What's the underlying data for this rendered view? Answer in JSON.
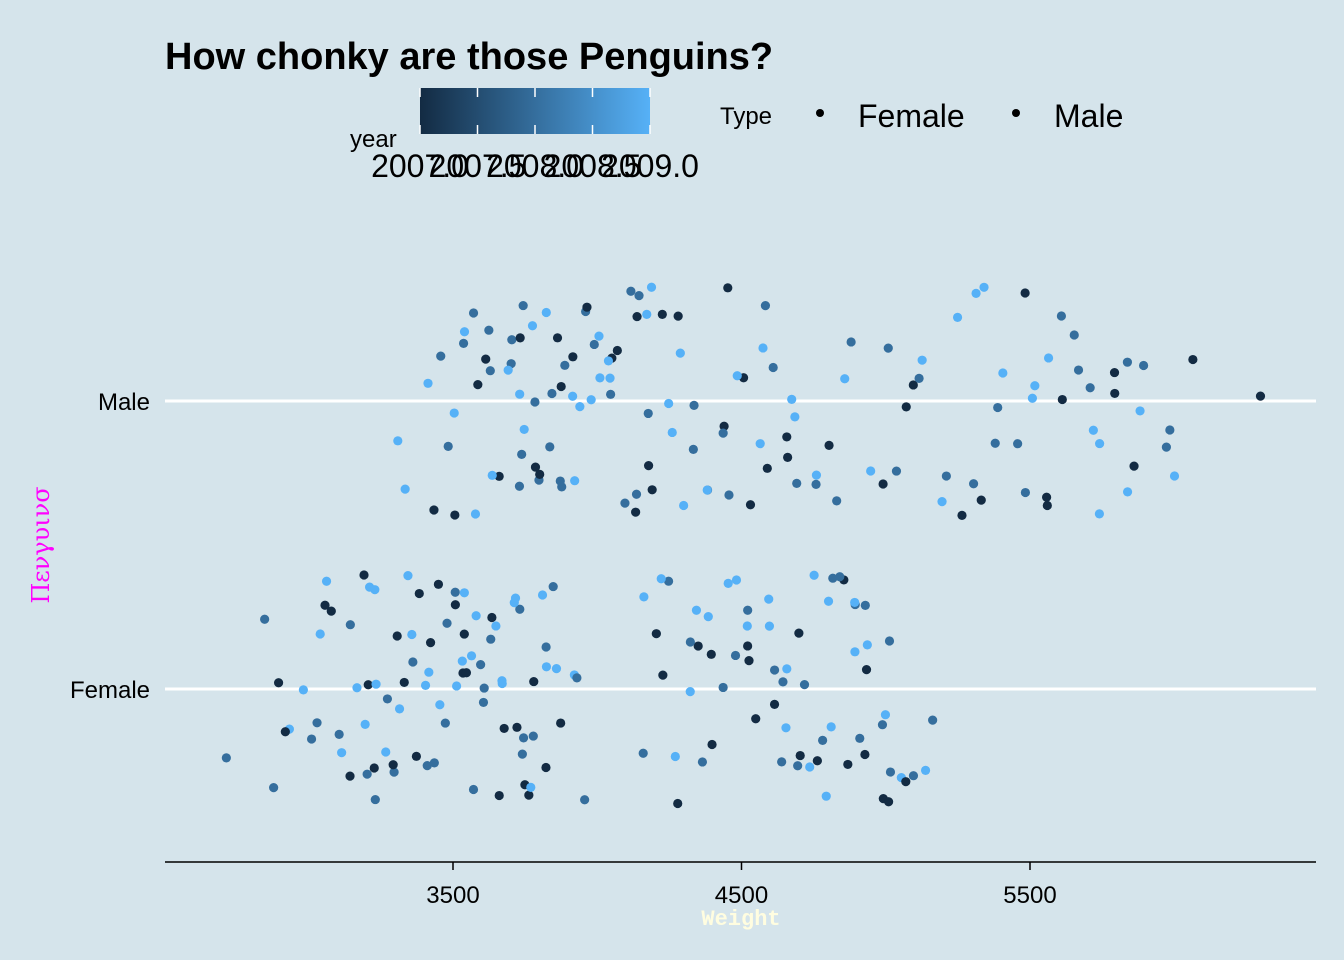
{
  "chart_data": {
    "type": "scatter",
    "title": "How chonky are those Penguins?",
    "xlabel": "Weight",
    "ylabel": "Πενγυινσ",
    "xlim": [
      2500,
      6500
    ],
    "x_ticks": [
      3500,
      4500,
      5500
    ],
    "x_tick_labels": [
      "3500",
      "4500",
      "5500"
    ],
    "categories": [
      "Female",
      "Male"
    ],
    "grid": "horizontal major lines only",
    "colors": {
      "background": "#d5e4eb",
      "title": "#000000",
      "xlabel": "#fffde0",
      "ylabel": "#ff00ff",
      "gridline": "#ffffff",
      "gradient_low": "#132b43",
      "gradient_high": "#56b1f7"
    },
    "legend": {
      "placement": "top",
      "color_legend": {
        "title": "year",
        "range": [
          2007,
          2009
        ],
        "tick_labels": [
          "2007.0",
          "2007.5",
          "2008.0",
          "2008.5",
          "2009.0"
        ]
      },
      "shape_legend": {
        "title": "Type",
        "entries": [
          "Female",
          "Male"
        ]
      }
    },
    "series": [
      {
        "name": "Male",
        "points": [
          [
            3450,
            2008
          ],
          [
            3500,
            2007
          ],
          [
            3300,
            2009
          ],
          [
            3350,
            2009
          ],
          [
            3650,
            2007
          ],
          [
            3690,
            2008
          ],
          [
            3610,
            2008
          ],
          [
            3700,
            2008
          ],
          [
            3800,
            2007
          ],
          [
            3780,
            2008
          ],
          [
            3750,
            2009
          ],
          [
            3680,
            2009
          ],
          [
            3640,
            2008
          ],
          [
            3710,
            2008
          ],
          [
            3590,
            2007
          ],
          [
            3760,
            2009
          ],
          [
            3630,
            2007
          ],
          [
            3790,
            2008
          ],
          [
            3820,
            2008
          ],
          [
            3850,
            2007
          ],
          [
            3880,
            2008
          ],
          [
            3900,
            2007
          ],
          [
            3920,
            2009
          ],
          [
            3950,
            2008
          ],
          [
            3960,
            2007
          ],
          [
            4000,
            2009
          ],
          [
            3980,
            2008
          ],
          [
            4050,
            2009
          ],
          [
            4100,
            2008
          ],
          [
            4120,
            2008
          ],
          [
            4150,
            2007
          ],
          [
            4180,
            2009
          ],
          [
            4080,
            2007
          ],
          [
            4010,
            2009
          ],
          [
            3900,
            2009
          ],
          [
            3870,
            2008
          ],
          [
            3830,
            2008
          ],
          [
            4200,
            2008
          ],
          [
            4250,
            2009
          ],
          [
            4280,
            2009
          ],
          [
            4300,
            2009
          ],
          [
            4350,
            2008
          ],
          [
            4420,
            2007
          ],
          [
            4460,
            2008
          ],
          [
            4500,
            2007
          ],
          [
            4550,
            2009
          ],
          [
            4600,
            2007
          ],
          [
            4650,
            2009
          ],
          [
            4700,
            2009
          ],
          [
            4750,
            2008
          ],
          [
            4800,
            2007
          ],
          [
            4850,
            2008
          ],
          [
            4900,
            2008
          ],
          [
            4950,
            2009
          ],
          [
            5000,
            2007
          ],
          [
            5050,
            2008
          ],
          [
            5100,
            2007
          ],
          [
            5150,
            2009
          ],
          [
            5200,
            2008
          ],
          [
            5250,
            2007
          ],
          [
            5300,
            2008
          ],
          [
            5350,
            2009
          ],
          [
            5400,
            2008
          ],
          [
            5450,
            2008
          ],
          [
            5500,
            2009
          ],
          [
            5550,
            2007
          ],
          [
            5600,
            2008
          ],
          [
            5650,
            2008
          ],
          [
            5700,
            2008
          ],
          [
            5750,
            2009
          ],
          [
            5800,
            2007
          ],
          [
            5850,
            2008
          ],
          [
            5900,
            2009
          ],
          [
            5950,
            2008
          ],
          [
            6000,
            2009
          ],
          [
            6050,
            2007
          ],
          [
            6300,
            2007
          ],
          [
            4400,
            2008
          ],
          [
            4460,
            2007
          ],
          [
            4480,
            2009
          ],
          [
            4300,
            2007
          ],
          [
            4190,
            2009
          ],
          [
            4320,
            2008
          ],
          [
            4600,
            2008
          ],
          [
            4060,
            2008
          ],
          [
            4030,
            2007
          ],
          [
            4210,
            2007
          ],
          [
            4140,
            2007
          ],
          [
            3550,
            2008
          ],
          [
            3430,
            2007
          ],
          [
            3750,
            2008
          ],
          [
            3810,
            2007
          ],
          [
            3950,
            2009
          ],
          [
            5060,
            2007
          ],
          [
            5370,
            2008
          ],
          [
            5260,
            2009
          ],
          [
            5470,
            2007
          ],
          [
            5630,
            2007
          ],
          [
            5670,
            2008
          ],
          [
            5710,
            2009
          ],
          [
            5890,
            2008
          ],
          [
            5520,
            2009
          ],
          [
            5560,
            2009
          ],
          [
            5310,
            2007
          ],
          [
            5110,
            2008
          ],
          [
            4990,
            2008
          ],
          [
            4880,
            2009
          ],
          [
            5200,
            2009
          ],
          [
            5290,
            2009
          ],
          [
            5410,
            2009
          ],
          [
            5500,
            2008
          ],
          [
            5570,
            2007
          ],
          [
            5730,
            2009
          ],
          [
            5780,
            2007
          ],
          [
            5830,
            2009
          ],
          [
            5870,
            2007
          ],
          [
            5980,
            2008
          ],
          [
            4580,
            2008
          ],
          [
            4640,
            2007
          ],
          [
            4680,
            2007
          ],
          [
            4770,
            2009
          ],
          [
            4520,
            2007
          ],
          [
            4380,
            2009
          ],
          [
            4240,
            2007
          ],
          [
            4470,
            2008
          ],
          [
            4560,
            2009
          ],
          [
            4700,
            2008
          ],
          [
            3470,
            2008
          ],
          [
            3530,
            2009
          ],
          [
            3620,
            2009
          ],
          [
            3720,
            2007
          ],
          [
            3760,
            2008
          ],
          [
            3900,
            2008
          ],
          [
            3980,
            2009
          ],
          [
            4060,
            2009
          ],
          [
            4130,
            2008
          ],
          [
            4160,
            2008
          ],
          [
            4190,
            2007
          ],
          [
            4260,
            2009
          ],
          [
            3820,
            2009
          ],
          [
            3860,
            2007
          ],
          [
            3740,
            2009
          ],
          [
            3580,
            2008
          ],
          [
            3500,
            2009
          ],
          [
            3400,
            2009
          ],
          [
            3600,
            2009
          ]
        ]
      },
      {
        "name": "Female",
        "points": [
          [
            2700,
            2008
          ],
          [
            2860,
            2008
          ],
          [
            2870,
            2008
          ],
          [
            2900,
            2007
          ],
          [
            2910,
            2009
          ],
          [
            2920,
            2007
          ],
          [
            2980,
            2009
          ],
          [
            3000,
            2008
          ],
          [
            3050,
            2009
          ],
          [
            3100,
            2007
          ],
          [
            3150,
            2009
          ],
          [
            3200,
            2007
          ],
          [
            3250,
            2008
          ],
          [
            3300,
            2009
          ],
          [
            3350,
            2007
          ],
          [
            3400,
            2008
          ],
          [
            3450,
            2008
          ],
          [
            3500,
            2007
          ],
          [
            3550,
            2009
          ],
          [
            3600,
            2008
          ],
          [
            3650,
            2009
          ],
          [
            3700,
            2007
          ],
          [
            3750,
            2008
          ],
          [
            3800,
            2009
          ],
          [
            3850,
            2008
          ],
          [
            3900,
            2009
          ],
          [
            3950,
            2008
          ],
          [
            3100,
            2009
          ],
          [
            3150,
            2008
          ],
          [
            3200,
            2009
          ],
          [
            3250,
            2007
          ],
          [
            3300,
            2008
          ],
          [
            3350,
            2009
          ],
          [
            3400,
            2007
          ],
          [
            3450,
            2009
          ],
          [
            3500,
            2008
          ],
          [
            3550,
            2007
          ],
          [
            3600,
            2009
          ],
          [
            3650,
            2008
          ],
          [
            3700,
            2009
          ],
          [
            3750,
            2007
          ],
          [
            3800,
            2008
          ],
          [
            3850,
            2009
          ],
          [
            3080,
            2007
          ],
          [
            3120,
            2008
          ],
          [
            3180,
            2009
          ],
          [
            3220,
            2007
          ],
          [
            3280,
            2009
          ],
          [
            3330,
            2007
          ],
          [
            3370,
            2008
          ],
          [
            3420,
            2009
          ],
          [
            3470,
            2007
          ],
          [
            3520,
            2009
          ],
          [
            3570,
            2008
          ],
          [
            3620,
            2007
          ],
          [
            3670,
            2009
          ],
          [
            3720,
            2008
          ],
          [
            3770,
            2007
          ],
          [
            3820,
            2009
          ],
          [
            3880,
            2007
          ],
          [
            3930,
            2008
          ],
          [
            3030,
            2008
          ],
          [
            3060,
            2009
          ],
          [
            3140,
            2007
          ],
          [
            3190,
            2008
          ],
          [
            3240,
            2009
          ],
          [
            3290,
            2008
          ],
          [
            3340,
            2007
          ],
          [
            3390,
            2009
          ],
          [
            3440,
            2008
          ],
          [
            3490,
            2009
          ],
          [
            3540,
            2007
          ],
          [
            3590,
            2008
          ],
          [
            3640,
            2007
          ],
          [
            3690,
            2009
          ],
          [
            3740,
            2008
          ],
          [
            3790,
            2007
          ],
          [
            3840,
            2007
          ],
          [
            3240,
            2009
          ],
          [
            3310,
            2007
          ],
          [
            3360,
            2009
          ],
          [
            3410,
            2007
          ],
          [
            3460,
            2008
          ],
          [
            3510,
            2009
          ],
          [
            3560,
            2007
          ],
          [
            3610,
            2008
          ],
          [
            3660,
            2009
          ],
          [
            3710,
            2007
          ],
          [
            3760,
            2009
          ],
          [
            3810,
            2008
          ],
          [
            4150,
            2009
          ],
          [
            4200,
            2007
          ],
          [
            4250,
            2008
          ],
          [
            4300,
            2009
          ],
          [
            4350,
            2008
          ],
          [
            4400,
            2007
          ],
          [
            4450,
            2009
          ],
          [
            4500,
            2008
          ],
          [
            4550,
            2007
          ],
          [
            4600,
            2009
          ],
          [
            4650,
            2008
          ],
          [
            4700,
            2007
          ],
          [
            4750,
            2009
          ],
          [
            4800,
            2008
          ],
          [
            4850,
            2007
          ],
          [
            4900,
            2009
          ],
          [
            4950,
            2008
          ],
          [
            5000,
            2007
          ],
          [
            5050,
            2009
          ],
          [
            5100,
            2008
          ],
          [
            4180,
            2008
          ],
          [
            4230,
            2007
          ],
          [
            4280,
            2009
          ],
          [
            4330,
            2007
          ],
          [
            4380,
            2009
          ],
          [
            4430,
            2008
          ],
          [
            4480,
            2009
          ],
          [
            4530,
            2007
          ],
          [
            4580,
            2009
          ],
          [
            4630,
            2007
          ],
          [
            4680,
            2008
          ],
          [
            4730,
            2009
          ],
          [
            4780,
            2007
          ],
          [
            4830,
            2009
          ],
          [
            4880,
            2008
          ],
          [
            4930,
            2007
          ],
          [
            4980,
            2009
          ],
          [
            5030,
            2008
          ],
          [
            5080,
            2007
          ],
          [
            5130,
            2009
          ],
          [
            4210,
            2009
          ],
          [
            4260,
            2007
          ],
          [
            4310,
            2008
          ],
          [
            4360,
            2009
          ],
          [
            4410,
            2007
          ],
          [
            4460,
            2008
          ],
          [
            4510,
            2009
          ],
          [
            4560,
            2007
          ],
          [
            4610,
            2008
          ],
          [
            4660,
            2009
          ],
          [
            4710,
            2007
          ],
          [
            4760,
            2008
          ],
          [
            4810,
            2009
          ],
          [
            4860,
            2007
          ],
          [
            4910,
            2008
          ],
          [
            4960,
            2009
          ],
          [
            5010,
            2007
          ],
          [
            4620,
            2008
          ],
          [
            4670,
            2009
          ],
          [
            4720,
            2008
          ],
          [
            4770,
            2009
          ],
          [
            4820,
            2008
          ],
          [
            4870,
            2009
          ],
          [
            4920,
            2007
          ],
          [
            4970,
            2008
          ],
          [
            5020,
            2008
          ],
          [
            5140,
            2008
          ]
        ]
      }
    ]
  }
}
